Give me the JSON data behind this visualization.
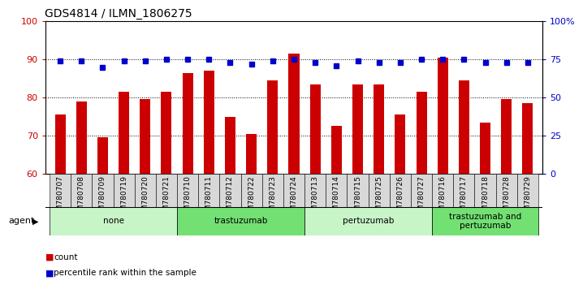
{
  "title": "GDS4814 / ILMN_1806275",
  "samples": [
    "GSM780707",
    "GSM780708",
    "GSM780709",
    "GSM780719",
    "GSM780720",
    "GSM780721",
    "GSM780710",
    "GSM780711",
    "GSM780712",
    "GSM780722",
    "GSM780723",
    "GSM780724",
    "GSM780713",
    "GSM780714",
    "GSM780715",
    "GSM780725",
    "GSM780726",
    "GSM780727",
    "GSM780716",
    "GSM780717",
    "GSM780718",
    "GSM780728",
    "GSM780729"
  ],
  "counts": [
    75.5,
    79.0,
    69.5,
    81.5,
    79.5,
    81.5,
    86.5,
    87.0,
    75.0,
    70.5,
    84.5,
    91.5,
    83.5,
    72.5,
    83.5,
    83.5,
    75.5,
    81.5,
    90.5,
    84.5,
    73.5,
    79.5,
    78.5
  ],
  "percentile_ranks": [
    74,
    74,
    70,
    74,
    74,
    75,
    75,
    75,
    73,
    72,
    74,
    75,
    73,
    71,
    74,
    73,
    73,
    75,
    75,
    75,
    73,
    73,
    73
  ],
  "groups": [
    {
      "label": "none",
      "start": 0,
      "end": 6,
      "color": "#c8f5c8"
    },
    {
      "label": "trastuzumab",
      "start": 6,
      "end": 12,
      "color": "#72e072"
    },
    {
      "label": "pertuzumab",
      "start": 12,
      "end": 18,
      "color": "#c8f5c8"
    },
    {
      "label": "trastuzumab and\npertuzumab",
      "start": 18,
      "end": 23,
      "color": "#72e072"
    }
  ],
  "ylim_left": [
    60,
    100
  ],
  "ylim_right": [
    0,
    100
  ],
  "yticks_left": [
    60,
    70,
    80,
    90,
    100
  ],
  "yticks_right": [
    0,
    25,
    50,
    75,
    100
  ],
  "ytick_labels_right": [
    "0",
    "25",
    "50",
    "75",
    "100%"
  ],
  "bar_color": "#cc0000",
  "dot_color": "#0000cc",
  "bar_width": 0.5,
  "agent_label": "agent",
  "legend_count_label": "count",
  "legend_percentile_label": "percentile rank within the sample",
  "background_color": "#ffffff",
  "tick_label_color_left": "#cc0000",
  "tick_label_color_right": "#0000cc",
  "xtick_bg_color": "#d8d8d8"
}
